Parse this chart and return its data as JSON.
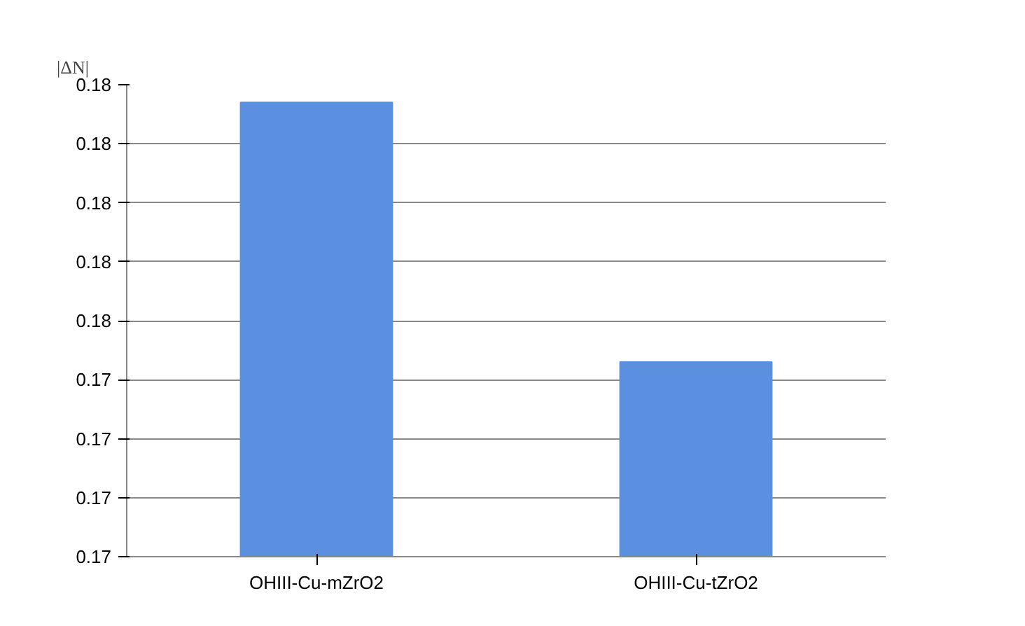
{
  "chart_data": {
    "type": "bar",
    "ylabel": "|ΔN|",
    "categories": [
      "OHIII-Cu-mZrO2",
      "OHIII-Cu-tZrO2"
    ],
    "values": [
      0.1797,
      0.1753
    ],
    "color": "#5b8fe0",
    "ylim": [
      0.172,
      0.18
    ],
    "yticks": [
      {
        "value": 0.172,
        "label": "0.17"
      },
      {
        "value": 0.173,
        "label": "0.17"
      },
      {
        "value": 0.174,
        "label": "0.17"
      },
      {
        "value": 0.175,
        "label": "0.17"
      },
      {
        "value": 0.176,
        "label": "0.18"
      },
      {
        "value": 0.177,
        "label": "0.18"
      },
      {
        "value": 0.178,
        "label": "0.18"
      },
      {
        "value": 0.179,
        "label": "0.18"
      },
      {
        "value": 0.18,
        "label": "0.18"
      }
    ],
    "grid": "y"
  }
}
